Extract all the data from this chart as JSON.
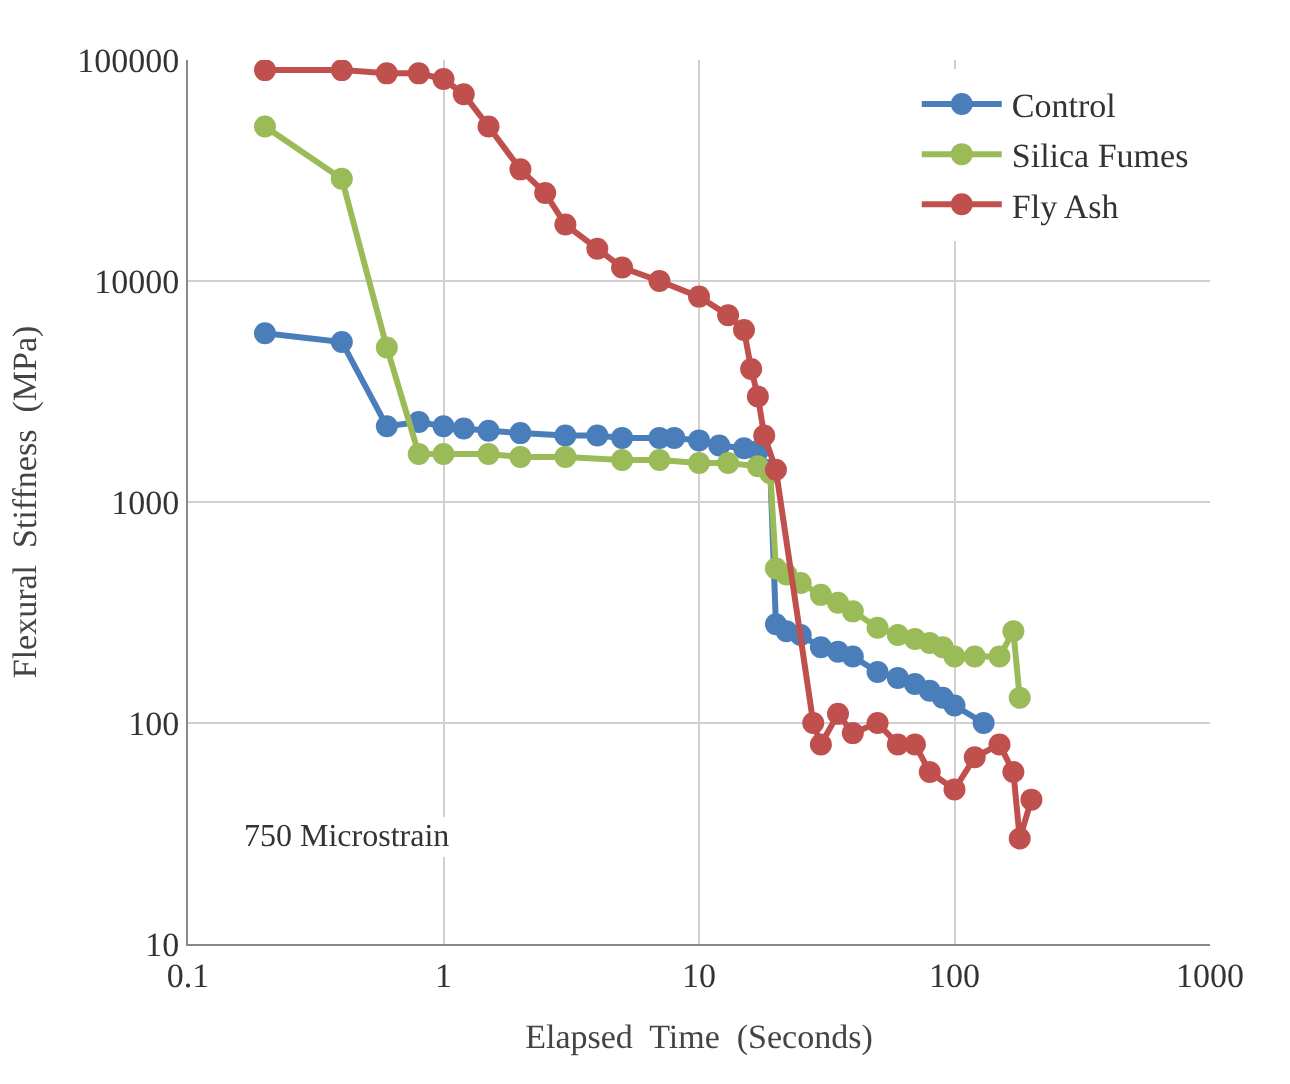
{
  "chart_data": {
    "type": "line",
    "xlabel": "Elapsed  Time  (Seconds)",
    "ylabel": "Flexural  Stiffness  (MPa)",
    "log": "xy",
    "xlim": [
      0.1,
      1000
    ],
    "ylim": [
      10,
      100000
    ],
    "xticks": [
      0.1,
      1,
      10,
      100,
      1000
    ],
    "yticks": [
      10,
      100,
      1000,
      10000,
      100000
    ],
    "grid": true,
    "legend": "top right",
    "marker": "circle",
    "line_style": "solid",
    "annotations": [
      "750 Microstrain"
    ],
    "series": [
      {
        "name": "Control",
        "color": "#4a7ebb",
        "x": [
          0.2,
          0.4,
          0.6,
          0.8,
          1,
          1.2,
          1.5,
          2,
          3,
          4,
          5,
          7,
          8,
          10,
          12,
          15,
          17,
          19,
          20,
          22,
          25,
          30,
          35,
          40,
          50,
          60,
          70,
          80,
          90,
          100,
          130
        ],
        "values": [
          5800,
          5300,
          2200,
          2300,
          2200,
          2150,
          2100,
          2050,
          2000,
          2000,
          1950,
          1950,
          1950,
          1900,
          1800,
          1750,
          1700,
          1400,
          280,
          260,
          250,
          220,
          210,
          200,
          170,
          160,
          150,
          140,
          130,
          120,
          100
        ]
      },
      {
        "name": "Silica Fumes",
        "color": "#9bbb59",
        "x": [
          0.2,
          0.4,
          0.6,
          0.8,
          1,
          1.5,
          2,
          3,
          5,
          7,
          10,
          13,
          17,
          19,
          20,
          22,
          25,
          30,
          35,
          40,
          50,
          60,
          70,
          80,
          90,
          100,
          120,
          150,
          170,
          180
        ],
        "values": [
          50000,
          29000,
          5000,
          1650,
          1650,
          1650,
          1600,
          1600,
          1550,
          1550,
          1500,
          1500,
          1450,
          1350,
          500,
          470,
          430,
          380,
          350,
          320,
          270,
          250,
          240,
          230,
          220,
          200,
          200,
          200,
          260,
          130
        ]
      },
      {
        "name": "Fly Ash",
        "color": "#c0504d",
        "x": [
          0.2,
          0.4,
          0.6,
          0.8,
          1,
          1.2,
          1.5,
          2,
          2.5,
          3,
          4,
          5,
          7,
          10,
          13,
          15,
          16,
          17,
          18,
          20,
          28,
          30,
          35,
          40,
          50,
          60,
          70,
          80,
          100,
          120,
          150,
          170,
          180,
          200
        ],
        "values": [
          90000,
          90000,
          87000,
          87000,
          82000,
          70000,
          50000,
          32000,
          25000,
          18000,
          14000,
          11500,
          10000,
          8500,
          7000,
          6000,
          4000,
          3000,
          2000,
          1400,
          100,
          80,
          110,
          90,
          100,
          80,
          80,
          60,
          50,
          70,
          80,
          60,
          30,
          45
        ]
      }
    ]
  }
}
